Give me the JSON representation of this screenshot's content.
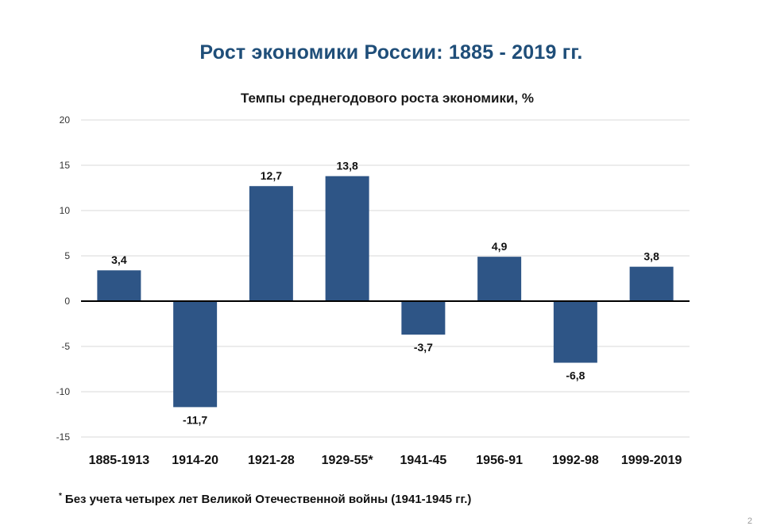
{
  "chart_data": {
    "type": "bar",
    "title": "Рост экономики России: 1885 - 2019 гг.",
    "subtitle": "Темпы среднегодового роста экономики, %",
    "categories": [
      "1885-1913",
      "1914-20",
      "1921-28",
      "1929-55*",
      "1941-45",
      "1956-91",
      "1992-98",
      "1999-2019"
    ],
    "values": [
      3.4,
      -11.7,
      12.7,
      13.8,
      -3.7,
      4.9,
      -6.8,
      3.8
    ],
    "value_labels": [
      "3,4",
      "-11,7",
      "12,7",
      "13,8",
      "-3,7",
      "4,9",
      "-6,8",
      "3,8"
    ],
    "ylim": [
      -15,
      20
    ],
    "yticks": [
      20,
      15,
      10,
      5,
      0,
      -5,
      -10,
      -15
    ],
    "grid": true,
    "bar_color": "#2e5586"
  },
  "footnote": {
    "mark": "*",
    "text": "Без учета четырех лет Великой Отечественной войны (1941-1945 гг.)"
  },
  "page_number": "2"
}
